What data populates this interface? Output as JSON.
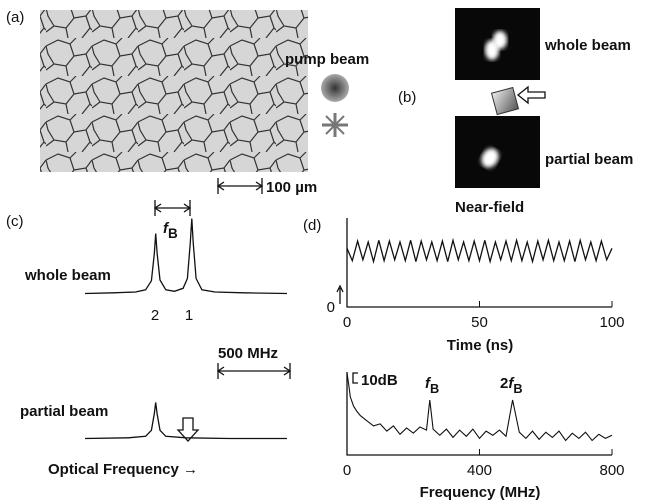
{
  "panel_a": {
    "label": "(a)",
    "beam_label": "pump beam",
    "scale_label": "100 µm"
  },
  "panel_b": {
    "label": "(b)",
    "images": [
      {
        "label": "whole beam"
      },
      {
        "label": "partial beam"
      }
    ],
    "caption": "Near-field"
  },
  "panel_c": {
    "label": "(c)",
    "spacing_label": {
      "symbol": "f",
      "subscript": "B"
    },
    "scale_label": "500 MHz"
  },
  "panel_d": {
    "label": "(d)"
  },
  "chart_data": [
    {
      "type": "line",
      "label": "whole beam",
      "color": "#111",
      "x": [
        0,
        200,
        350,
        420,
        460,
        480,
        490,
        500,
        520,
        560,
        620,
        680,
        710,
        730,
        740,
        750,
        770,
        810,
        900,
        1100,
        1400
      ],
      "values": [
        0.02,
        0.03,
        0.04,
        0.07,
        0.19,
        0.55,
        0.82,
        0.56,
        0.2,
        0.07,
        0.05,
        0.09,
        0.22,
        0.7,
        1.02,
        0.7,
        0.22,
        0.07,
        0.04,
        0.03,
        0.02
      ],
      "xlim": [
        0,
        1400
      ],
      "ylim": [
        0,
        1
      ],
      "peak_labels": [
        "2",
        "1"
      ]
    },
    {
      "type": "line",
      "label": "partial beam",
      "color": "#111",
      "xlabel": "Optical Frequency →",
      "x": [
        0,
        300,
        420,
        460,
        480,
        490,
        500,
        520,
        560,
        700,
        1000,
        1400
      ],
      "values": [
        0.02,
        0.03,
        0.05,
        0.13,
        0.35,
        0.5,
        0.35,
        0.13,
        0.05,
        0.03,
        0.02,
        0.02
      ],
      "xlim": [
        0,
        1400
      ],
      "ylim": [
        0,
        1
      ]
    },
    {
      "type": "line",
      "color": "#111",
      "xlabel": "Time (ns)",
      "x": [
        0,
        2,
        4,
        6,
        8,
        10,
        12,
        14,
        16,
        18,
        20,
        22,
        24,
        26,
        28,
        30,
        32,
        34,
        36,
        38,
        40,
        42,
        44,
        46,
        48,
        50,
        52,
        54,
        56,
        58,
        60,
        62,
        64,
        66,
        68,
        70,
        72,
        74,
        76,
        78,
        80,
        82,
        84,
        86,
        88,
        90,
        92,
        94,
        96,
        98,
        100
      ],
      "values": [
        0.66,
        0.52,
        0.74,
        0.53,
        0.73,
        0.51,
        0.75,
        0.52,
        0.74,
        0.53,
        0.73,
        0.52,
        0.75,
        0.51,
        0.74,
        0.53,
        0.73,
        0.52,
        0.74,
        0.51,
        0.75,
        0.53,
        0.73,
        0.52,
        0.74,
        0.52,
        0.75,
        0.51,
        0.73,
        0.53,
        0.74,
        0.52,
        0.75,
        0.52,
        0.73,
        0.51,
        0.74,
        0.53,
        0.75,
        0.52,
        0.73,
        0.52,
        0.74,
        0.51,
        0.75,
        0.53,
        0.73,
        0.52,
        0.74,
        0.53,
        0.66
      ],
      "xlim": [
        0,
        100
      ],
      "ylim": [
        0,
        1
      ],
      "xticks": [
        0,
        50,
        100
      ],
      "yticks": [
        0
      ]
    },
    {
      "type": "line",
      "color": "#111",
      "xlabel": "Frequency (MHz)",
      "scale_label": "10dB",
      "annotations": [
        {
          "symbol": "f",
          "subscript": "B"
        },
        {
          "prefix": "2",
          "symbol": "f",
          "subscript": "B"
        }
      ],
      "x": [
        0,
        5,
        10,
        20,
        30,
        40,
        60,
        80,
        100,
        120,
        140,
        160,
        180,
        200,
        220,
        240,
        250,
        260,
        280,
        300,
        320,
        340,
        360,
        380,
        400,
        420,
        440,
        460,
        480,
        500,
        520,
        540,
        560,
        580,
        600,
        620,
        640,
        660,
        680,
        700,
        720,
        740,
        760,
        780,
        800
      ],
      "values": [
        -1,
        -12,
        -24,
        -33,
        -38,
        -42,
        -47,
        -52,
        -50,
        -57,
        -52,
        -60,
        -54,
        -59,
        -53,
        -56,
        -27,
        -55,
        -61,
        -55,
        -63,
        -56,
        -62,
        -55,
        -64,
        -57,
        -61,
        -56,
        -62,
        -27,
        -58,
        -64,
        -57,
        -65,
        -58,
        -63,
        -57,
        -66,
        -59,
        -64,
        -58,
        -66,
        -60,
        -64,
        -61
      ],
      "xlim": [
        0,
        800
      ],
      "ylim": [
        -80,
        0
      ],
      "xticks": [
        0,
        400,
        800
      ]
    }
  ]
}
